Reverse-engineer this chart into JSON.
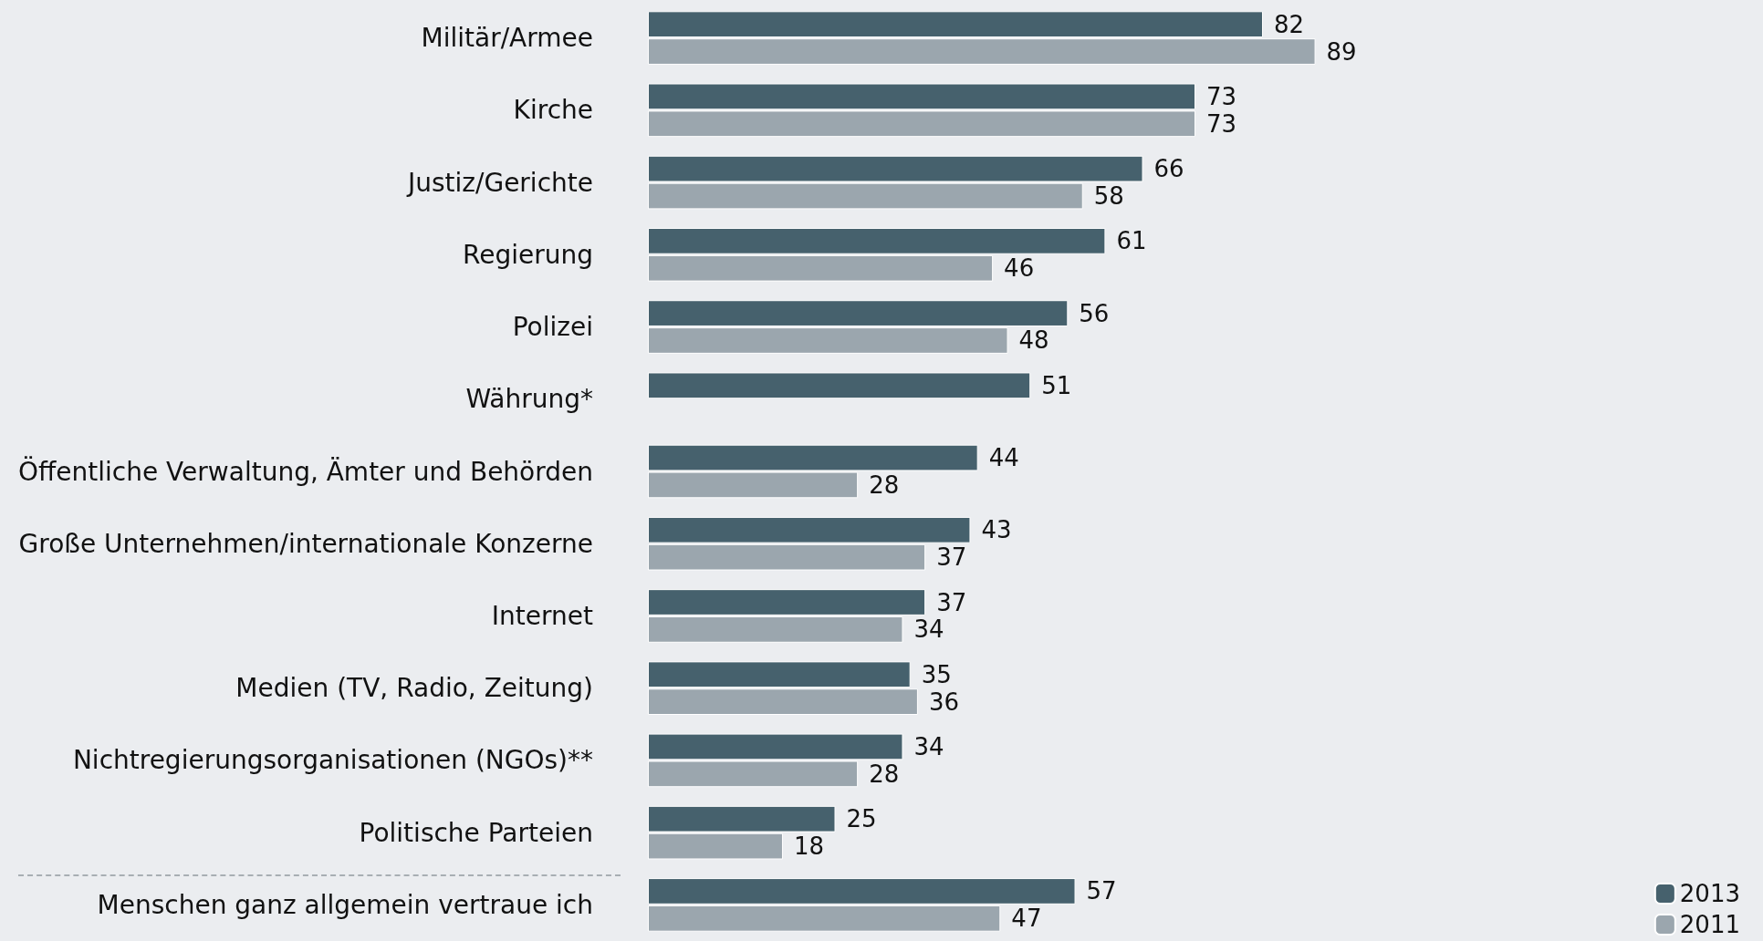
{
  "chart_data": {
    "type": "bar",
    "orientation": "horizontal",
    "categories": [
      "Militär/Armee",
      "Kirche",
      "Justiz/Gerichte",
      "Regierung",
      "Polizei",
      "Währung*",
      "Öffentliche Verwaltung, Ämter und Behörden",
      "Große Unternehmen/internationale Konzerne",
      "Internet",
      "Medien (TV, Radio, Zeitung)",
      "Nichtregierungsorganisationen (NGOs)**",
      "Politische Parteien",
      "Menschen ganz allgemein vertraue ich"
    ],
    "series": [
      {
        "name": "2013",
        "color": "#46616d",
        "values": [
          82,
          73,
          66,
          61,
          56,
          51,
          44,
          43,
          37,
          35,
          34,
          25,
          57
        ]
      },
      {
        "name": "2011",
        "color": "#9ba6ae",
        "values": [
          89,
          73,
          58,
          46,
          48,
          null,
          28,
          37,
          34,
          36,
          28,
          18,
          47
        ]
      }
    ],
    "data_labels": true,
    "legend": "bottom right",
    "grid": false
  }
}
